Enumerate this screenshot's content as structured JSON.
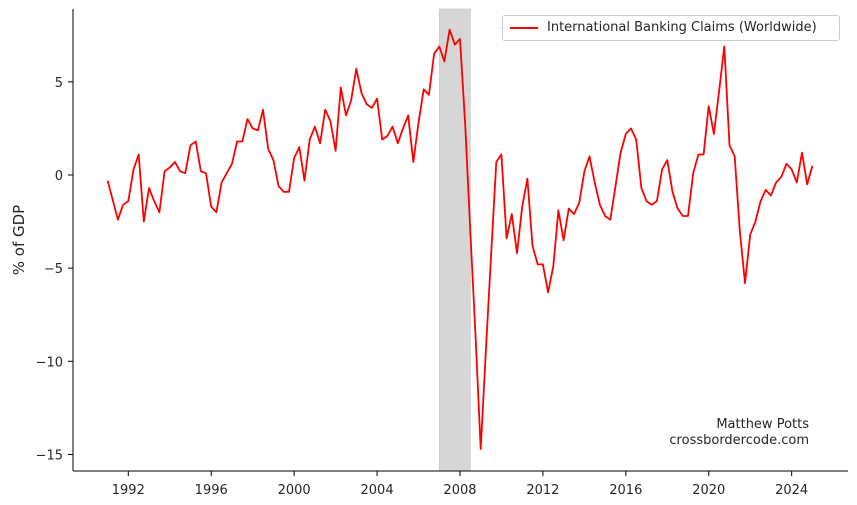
{
  "chart_data": {
    "type": "line",
    "title": "",
    "xlabel": "",
    "ylabel": "% of GDP",
    "xlim": [
      1990.4,
      2026.2
    ],
    "ylim": [
      -15.8,
      8.9
    ],
    "grid": false,
    "legend_position": "upper right",
    "x_ticks": [
      1992,
      1996,
      2000,
      2004,
      2008,
      2012,
      2016,
      2020,
      2024
    ],
    "y_ticks": [
      5,
      0,
      -5,
      -10,
      -15
    ],
    "y_tick_labels": [
      "5",
      "0",
      "−5",
      "−10",
      "−15"
    ],
    "x_start": 1991.0,
    "x_step": 0.25,
    "shaded_regions": [
      {
        "start": 2007.0,
        "end": 2008.5,
        "color": "#d6d6d6",
        "label": "recession"
      }
    ],
    "series": [
      {
        "name": "International Banking Claims (Worldwide)",
        "color": "#ff0000",
        "values": [
          -0.3,
          -1.35,
          -2.4,
          -1.6,
          -1.4,
          0.3,
          1.1,
          -2.5,
          -0.7,
          -1.4,
          -2.0,
          0.2,
          0.4,
          0.7,
          0.2,
          0.1,
          1.6,
          1.8,
          0.2,
          0.1,
          -1.7,
          -2.0,
          -0.4,
          0.1,
          0.6,
          1.8,
          1.8,
          3.0,
          2.5,
          2.4,
          3.5,
          1.4,
          0.8,
          -0.6,
          -0.9,
          -0.9,
          0.9,
          1.5,
          -0.3,
          1.9,
          2.6,
          1.7,
          3.5,
          2.9,
          1.3,
          4.7,
          3.2,
          4.0,
          5.7,
          4.4,
          3.8,
          3.6,
          4.1,
          1.9,
          2.1,
          2.6,
          1.7,
          2.5,
          3.2,
          0.7,
          2.8,
          4.6,
          4.3,
          6.5,
          6.9,
          6.1,
          7.8,
          7.0,
          7.3,
          2.7,
          -3.0,
          -8.6,
          -14.7,
          -9.4,
          -4.3,
          0.7,
          1.1,
          -3.4,
          -2.1,
          -4.2,
          -1.7,
          -0.2,
          -3.8,
          -4.8,
          -4.8,
          -6.3,
          -4.9,
          -1.9,
          -3.5,
          -1.8,
          -2.1,
          -1.5,
          0.2,
          1.0,
          -0.4,
          -1.6,
          -2.2,
          -2.4,
          -0.6,
          1.2,
          2.2,
          2.5,
          1.9,
          -0.7,
          -1.4,
          -1.6,
          -1.4,
          0.3,
          0.8,
          -0.9,
          -1.8,
          -2.2,
          -2.2,
          0.1,
          1.1,
          1.1,
          3.7,
          2.2,
          4.5,
          6.9,
          1.6,
          1.0,
          -3.0,
          -5.8,
          -3.2,
          -2.5,
          -1.4,
          -0.8,
          -1.1,
          -0.4,
          -0.1,
          0.6,
          0.3,
          -0.4,
          1.2,
          -0.5,
          0.5
        ]
      }
    ],
    "annotations": [
      "Matthew Potts",
      "crossbordercode.com"
    ]
  },
  "legend": {
    "label": "International Banking Claims (Worldwide)",
    "color": "#ff0000"
  },
  "credit": {
    "author": "Matthew Potts",
    "site": "crossbordercode.com"
  },
  "axis": {
    "ylabel": "% of GDP"
  }
}
